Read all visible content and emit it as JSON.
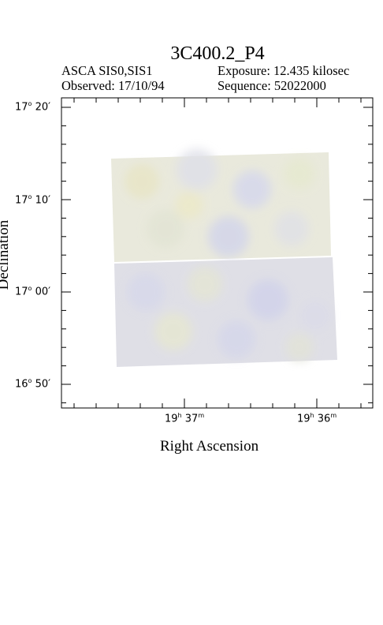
{
  "header": {
    "title": "3C400.2_P4",
    "instrument": "ASCA SIS0,SIS1",
    "exposure": "Exposure: 12.435 kilosec",
    "observed": "Observed: 17/10/94",
    "sequence": "Sequence: 52022000"
  },
  "axes": {
    "ylabel": "Declination",
    "xlabel": "Right Ascension",
    "dec_ticks": [
      {
        "deg": "17",
        "min": "20"
      },
      {
        "deg": "17",
        "min": "10"
      },
      {
        "deg": "17",
        "min": "00"
      },
      {
        "deg": "16",
        "min": "50"
      }
    ],
    "ra_ticks": [
      {
        "h": "19",
        "m": "37"
      },
      {
        "h": "19",
        "m": "36"
      }
    ]
  },
  "image": {
    "palette": [
      "#ece8cf",
      "#e8ecdc",
      "#dedde8",
      "#d4d6ec",
      "#ecebd8"
    ]
  }
}
